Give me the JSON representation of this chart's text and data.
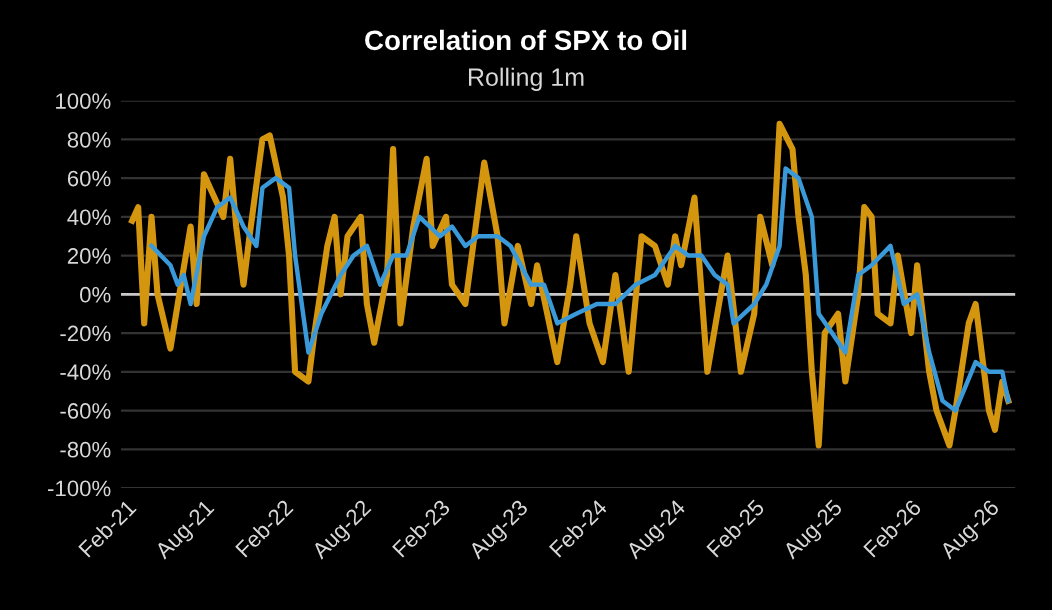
{
  "chart_data": {
    "type": "line",
    "title": "Correlation of SPX to Oil",
    "subtitle": "Rolling 1m",
    "xlim": [
      "2021-01-20",
      "2026-10-01"
    ],
    "xticks": [
      {
        "value": "2021-02-01",
        "label": "Feb-21"
      },
      {
        "value": "2021-08-01",
        "label": "Aug-21"
      },
      {
        "value": "2022-02-01",
        "label": "Feb-22"
      },
      {
        "value": "2022-08-01",
        "label": "Aug-22"
      },
      {
        "value": "2023-02-01",
        "label": "Feb-23"
      },
      {
        "value": "2023-08-01",
        "label": "Aug-23"
      },
      {
        "value": "2024-02-01",
        "label": "Feb-24"
      },
      {
        "value": "2024-08-01",
        "label": "Aug-24"
      },
      {
        "value": "2025-02-01",
        "label": "Feb-25"
      },
      {
        "value": "2025-08-01",
        "label": "Aug-25"
      },
      {
        "value": "2026-02-01",
        "label": "Feb-26"
      },
      {
        "value": "2026-08-01",
        "label": "Aug-26"
      }
    ],
    "ylim": [
      -100,
      100
    ],
    "yticks": [
      {
        "value": -100,
        "label": "-100%"
      },
      {
        "value": -80,
        "label": "-80%"
      },
      {
        "value": -60,
        "label": "-60%"
      },
      {
        "value": -40,
        "label": "-40%"
      },
      {
        "value": -20,
        "label": "-20%"
      },
      {
        "value": 0,
        "label": "0%"
      },
      {
        "value": 20,
        "label": "20%"
      },
      {
        "value": 40,
        "label": "40%"
      },
      {
        "value": 60,
        "label": "60%"
      },
      {
        "value": 80,
        "label": "80%"
      },
      {
        "value": 100,
        "label": "100%"
      }
    ],
    "grid": "y",
    "ref_lines": [
      {
        "axis": "y",
        "value": 0,
        "label": null,
        "color": "#c8c8c8"
      }
    ],
    "series": [
      {
        "color": "#d4960f",
        "x": [
          "2021-02-15",
          "2021-03-01",
          "2021-03-15",
          "2021-04-01",
          "2021-04-15",
          "2021-05-15",
          "2021-06-01",
          "2021-07-01",
          "2021-07-15",
          "2021-08-01",
          "2021-08-15",
          "2021-09-15",
          "2021-10-01",
          "2021-10-15",
          "2021-11-01",
          "2021-11-15",
          "2021-12-15",
          "2022-01-01",
          "2022-02-01",
          "2022-02-15",
          "2022-03-01",
          "2022-04-01",
          "2022-04-15",
          "2022-05-15",
          "2022-06-01",
          "2022-06-15",
          "2022-07-01",
          "2022-08-01",
          "2022-08-15",
          "2022-09-01",
          "2022-10-01",
          "2022-10-15",
          "2022-11-01",
          "2022-12-01",
          "2023-01-01",
          "2023-01-15",
          "2023-02-15",
          "2023-03-01",
          "2023-04-01",
          "2023-05-15",
          "2023-06-15",
          "2023-07-01",
          "2023-08-01",
          "2023-09-01",
          "2023-09-15",
          "2023-11-01",
          "2023-12-01",
          "2023-12-15",
          "2024-01-15",
          "2024-02-15",
          "2024-03-15",
          "2024-04-15",
          "2024-05-15",
          "2024-06-15",
          "2024-07-15",
          "2024-08-01",
          "2024-08-15",
          "2024-09-15",
          "2024-10-15",
          "2024-11-15",
          "2024-12-01",
          "2025-01-01",
          "2025-02-01",
          "2025-02-15",
          "2025-03-15",
          "2025-04-01",
          "2025-05-01",
          "2025-05-15",
          "2025-06-01",
          "2025-06-15",
          "2025-07-01",
          "2025-07-15",
          "2025-08-15",
          "2025-09-01",
          "2025-10-01",
          "2025-10-15",
          "2025-11-01",
          "2025-11-15",
          "2025-12-15",
          "2026-01-01",
          "2026-02-01",
          "2026-02-15",
          "2026-03-15",
          "2026-04-01",
          "2026-05-01",
          "2026-05-15",
          "2026-06-15",
          "2026-07-01",
          "2026-08-01",
          "2026-08-15",
          "2026-09-01",
          "2026-09-15"
        ],
        "values": [
          38,
          45,
          -15,
          40,
          0,
          -28,
          -5,
          35,
          -5,
          62,
          55,
          40,
          70,
          35,
          5,
          30,
          80,
          82,
          50,
          20,
          -40,
          -45,
          -20,
          25,
          40,
          0,
          30,
          40,
          -5,
          -25,
          10,
          75,
          -15,
          35,
          70,
          25,
          40,
          5,
          -5,
          68,
          30,
          -15,
          25,
          -5,
          15,
          -35,
          5,
          30,
          -15,
          -35,
          10,
          -40,
          30,
          25,
          5,
          30,
          15,
          50,
          -40,
          0,
          20,
          -40,
          -10,
          40,
          15,
          88,
          75,
          40,
          10,
          -40,
          -78,
          -20,
          -10,
          -45,
          0,
          45,
          40,
          -10,
          -15,
          20,
          -20,
          15,
          -40,
          -60,
          -78,
          -60,
          -15,
          -5,
          -60,
          -70,
          -45,
          -55
        ]
      },
      {
        "color": "#3a9ad9",
        "x": [
          "2021-04-01",
          "2021-05-15",
          "2021-06-01",
          "2021-06-15",
          "2021-07-01",
          "2021-08-01",
          "2021-09-01",
          "2021-10-01",
          "2021-11-01",
          "2021-12-01",
          "2021-12-15",
          "2022-01-15",
          "2022-02-15",
          "2022-03-01",
          "2022-04-01",
          "2022-05-01",
          "2022-06-15",
          "2022-07-15",
          "2022-08-15",
          "2022-09-15",
          "2022-10-15",
          "2022-11-15",
          "2022-12-15",
          "2023-02-01",
          "2023-03-01",
          "2023-04-01",
          "2023-05-01",
          "2023-06-15",
          "2023-07-15",
          "2023-09-01",
          "2023-10-01",
          "2023-11-01",
          "2023-12-15",
          "2024-02-01",
          "2024-03-15",
          "2024-05-01",
          "2024-06-15",
          "2024-08-01",
          "2024-09-01",
          "2024-10-01",
          "2024-11-01",
          "2024-12-01",
          "2024-12-15",
          "2025-02-01",
          "2025-03-01",
          "2025-04-01",
          "2025-04-15",
          "2025-05-15",
          "2025-06-15",
          "2025-07-01",
          "2025-08-01",
          "2025-09-01",
          "2025-10-01",
          "2025-11-01",
          "2025-12-15",
          "2026-01-15",
          "2026-02-15",
          "2026-03-15",
          "2026-04-15",
          "2026-05-15",
          "2026-07-01",
          "2026-08-01",
          "2026-09-01",
          "2026-09-15"
        ],
        "values": [
          25,
          15,
          5,
          10,
          -5,
          30,
          45,
          50,
          35,
          25,
          55,
          60,
          55,
          20,
          -30,
          -10,
          10,
          20,
          25,
          5,
          20,
          20,
          40,
          30,
          35,
          25,
          30,
          30,
          25,
          5,
          5,
          -15,
          -10,
          -5,
          -5,
          5,
          10,
          25,
          20,
          20,
          10,
          5,
          -15,
          -5,
          5,
          25,
          65,
          60,
          40,
          -10,
          -20,
          -30,
          10,
          15,
          25,
          -5,
          0,
          -30,
          -55,
          -60,
          -35,
          -40,
          -40,
          -55
        ]
      }
    ]
  }
}
